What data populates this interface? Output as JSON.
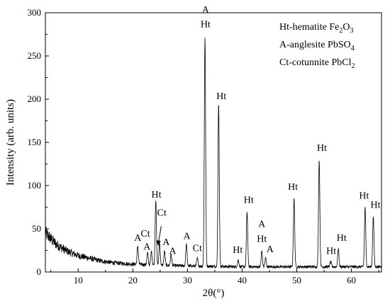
{
  "chart_data": {
    "type": "line",
    "xlabel": "2θ(°)",
    "ylabel": "Intensity (arb. units)",
    "xlim": [
      4,
      65.5
    ],
    "ylim": [
      0,
      300
    ],
    "xticks": [
      "10",
      "20",
      "30",
      "40",
      "50",
      "60"
    ],
    "yticks": [
      "0",
      "50",
      "100",
      "150",
      "200",
      "250",
      "300"
    ],
    "grid": false,
    "line_color": "#000000",
    "series": [
      {
        "background": [
          [
            4,
            45
          ],
          [
            6,
            32
          ],
          [
            8,
            24
          ],
          [
            10,
            19
          ],
          [
            12,
            16
          ],
          [
            14,
            13
          ],
          [
            16,
            11
          ],
          [
            18,
            10
          ],
          [
            20,
            9
          ],
          [
            24,
            8
          ],
          [
            30,
            7
          ],
          [
            40,
            6
          ],
          [
            50,
            6
          ],
          [
            60,
            6
          ],
          [
            65.5,
            6
          ]
        ],
        "peaks": [
          {
            "x": 20.9,
            "y": 30
          },
          {
            "x": 22.7,
            "y": 22
          },
          {
            "x": 23.4,
            "y": 24
          },
          {
            "x": 24.2,
            "y": 84
          },
          {
            "x": 24.9,
            "y": 33
          },
          {
            "x": 25.8,
            "y": 24
          },
          {
            "x": 27.0,
            "y": 20
          },
          {
            "x": 29.8,
            "y": 32
          },
          {
            "x": 31.8,
            "y": 16
          },
          {
            "x": 33.2,
            "y": 272
          },
          {
            "x": 35.7,
            "y": 195
          },
          {
            "x": 39.3,
            "y": 14
          },
          {
            "x": 40.9,
            "y": 70
          },
          {
            "x": 43.6,
            "y": 24
          },
          {
            "x": 44.3,
            "y": 16
          },
          {
            "x": 49.5,
            "y": 85
          },
          {
            "x": 54.1,
            "y": 130
          },
          {
            "x": 56.2,
            "y": 12
          },
          {
            "x": 57.6,
            "y": 27
          },
          {
            "x": 62.5,
            "y": 75
          },
          {
            "x": 64.0,
            "y": 65
          }
        ]
      }
    ],
    "annotations": [
      {
        "text": "A",
        "x": 20.9,
        "y": 36
      },
      {
        "text": "Ct",
        "x": 22.3,
        "y": 41
      },
      {
        "text": "A",
        "x": 22.6,
        "y": 26
      },
      {
        "text": "Ht",
        "x": 24.3,
        "y": 86
      },
      {
        "text": "Ct",
        "x": 25.3,
        "y": 65
      },
      {
        "text": "A",
        "x": 26.1,
        "y": 31
      },
      {
        "text": "A",
        "x": 27.3,
        "y": 21
      },
      {
        "text": "A",
        "x": 29.9,
        "y": 38
      },
      {
        "text": "Ct",
        "x": 31.8,
        "y": 24
      },
      {
        "text": "A",
        "x": 33.3,
        "y": 300
      },
      {
        "text": "Ht",
        "x": 33.3,
        "y": 283
      },
      {
        "text": "Ht",
        "x": 36.2,
        "y": 200
      },
      {
        "text": "Ht",
        "x": 39.2,
        "y": 22
      },
      {
        "text": "Ht",
        "x": 41.2,
        "y": 80
      },
      {
        "text": "A",
        "x": 43.6,
        "y": 52
      },
      {
        "text": "Ht",
        "x": 43.6,
        "y": 35
      },
      {
        "text": "A",
        "x": 45.1,
        "y": 23
      },
      {
        "text": "Ht",
        "x": 49.3,
        "y": 95
      },
      {
        "text": "Ht",
        "x": 54.6,
        "y": 140
      },
      {
        "text": "Ht",
        "x": 56.3,
        "y": 21
      },
      {
        "text": "Ht",
        "x": 58.2,
        "y": 36
      },
      {
        "text": "Ht",
        "x": 62.3,
        "y": 85
      },
      {
        "text": "Ht",
        "x": 64.4,
        "y": 74
      }
    ],
    "arrow": {
      "from": [
        25.2,
        53
      ],
      "to": [
        24.7,
        30
      ]
    },
    "legend": {
      "placement": "top-right",
      "entries": [
        {
          "prefix": "Ht-hematite Fe",
          "sub1": "2",
          "mid": "O",
          "sub2": "3"
        },
        {
          "prefix": "A-anglesite PbSO",
          "sub1": "4",
          "mid": "",
          "sub2": ""
        },
        {
          "prefix": "Ct-cotunnite PbCl",
          "sub1": "2",
          "mid": "",
          "sub2": ""
        }
      ]
    }
  }
}
